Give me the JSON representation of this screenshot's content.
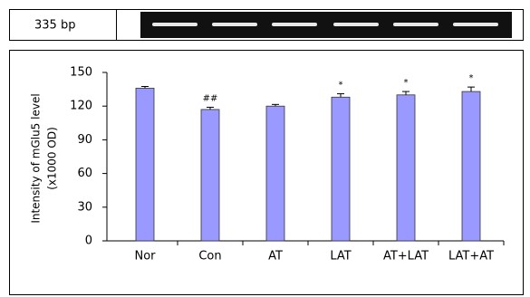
{
  "gel_label": "335 bp",
  "chart_data": {
    "type": "bar",
    "y_label": [
      "Intensity of mGlu5 level",
      "(x1000  OD)"
    ],
    "categories": [
      "Nor",
      "Con",
      "AT",
      "LAT",
      "AT+LAT",
      "LAT+AT"
    ],
    "values": [
      136,
      117,
      120,
      128,
      130,
      133
    ],
    "errors": [
      1.5,
      2,
      1.5,
      3,
      3,
      4
    ],
    "annotations": [
      null,
      "##",
      null,
      "*",
      "*",
      "*"
    ],
    "color": "#9999ff",
    "ylim": [
      0,
      150
    ],
    "yticks": [
      0,
      30,
      60,
      90,
      120,
      150
    ],
    "grid": false
  }
}
